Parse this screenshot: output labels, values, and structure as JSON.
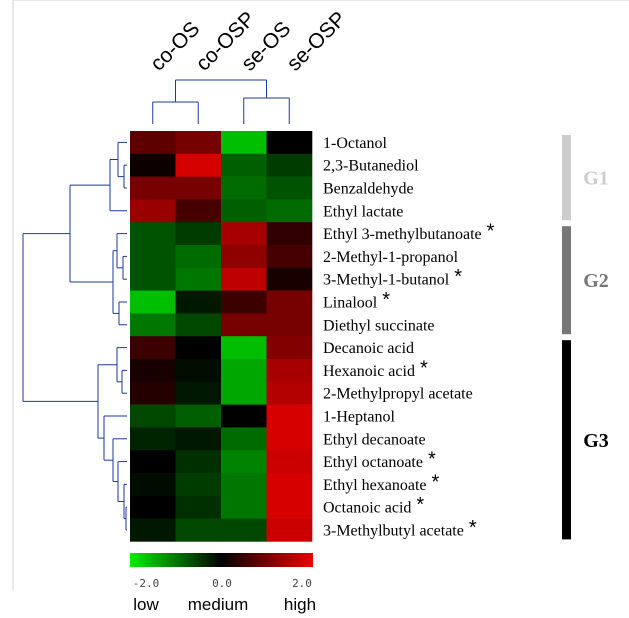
{
  "chart_data": {
    "type": "heatmap",
    "columns": [
      "co-OS",
      "co-OSP",
      "se-OS",
      "se-OSP"
    ],
    "rows": [
      {
        "name": "1-Octanol",
        "star": false,
        "values": [
          0.8,
          1.0,
          -1.6,
          0.0
        ]
      },
      {
        "name": "2,3-Butanediol",
        "star": false,
        "values": [
          0.1,
          1.8,
          -0.8,
          -0.5
        ]
      },
      {
        "name": "Benzaldehyde",
        "star": false,
        "values": [
          1.0,
          1.0,
          -0.9,
          -0.7
        ]
      },
      {
        "name": "Ethyl lactate",
        "star": false,
        "values": [
          1.3,
          0.6,
          -0.8,
          -0.9
        ]
      },
      {
        "name": "Ethyl 3-methylbutanoate",
        "star": true,
        "values": [
          -0.7,
          -0.5,
          1.4,
          0.4
        ]
      },
      {
        "name": "2-Methyl-1-propanol",
        "star": false,
        "values": [
          -0.7,
          -0.9,
          1.2,
          0.6
        ]
      },
      {
        "name": "3-Methyl-1-butanol",
        "star": true,
        "values": [
          -0.7,
          -1.0,
          1.6,
          0.2
        ]
      },
      {
        "name": "Linalool",
        "star": true,
        "values": [
          -1.6,
          -0.2,
          0.5,
          1.0
        ]
      },
      {
        "name": "Diethyl succinate",
        "star": false,
        "values": [
          -1.0,
          -0.6,
          1.0,
          1.0
        ]
      },
      {
        "name": "Decanoic acid",
        "star": false,
        "values": [
          0.5,
          0.0,
          -1.6,
          1.1
        ]
      },
      {
        "name": "Hexanoic acid",
        "star": true,
        "values": [
          0.2,
          -0.1,
          -1.4,
          1.4
        ]
      },
      {
        "name": "2-Methylpropyl acetate",
        "star": false,
        "values": [
          0.3,
          -0.2,
          -1.4,
          1.5
        ]
      },
      {
        "name": "1-Heptanol",
        "star": false,
        "values": [
          -0.6,
          -0.8,
          0.0,
          1.8
        ]
      },
      {
        "name": "Ethyl decanoate",
        "star": false,
        "values": [
          -0.3,
          -0.2,
          -0.9,
          1.8
        ]
      },
      {
        "name": "Ethyl octanoate",
        "star": true,
        "values": [
          0.0,
          -0.4,
          -1.1,
          1.7
        ]
      },
      {
        "name": "Ethyl hexanoate",
        "star": true,
        "values": [
          -0.1,
          -0.5,
          -1.0,
          1.8
        ]
      },
      {
        "name": "Octanoic acid",
        "star": true,
        "values": [
          0.0,
          -0.4,
          -1.0,
          1.8
        ]
      },
      {
        "name": "3-Methylbutyl acetate",
        "star": true,
        "values": [
          -0.2,
          -0.6,
          -0.6,
          1.7
        ]
      }
    ],
    "color_scale": {
      "min": -2.0,
      "mid": 0.0,
      "max": 2.0,
      "low_color": "#00ee00",
      "mid_color": "#000000",
      "high_color": "#ee0000"
    },
    "legend_ticks": [
      "-2.0",
      "0.0",
      "2.0"
    ],
    "legend_words": [
      "low",
      "medium",
      "high"
    ],
    "groups": [
      {
        "label": "G1",
        "color": "#cccccc",
        "first_row": 0,
        "last_row": 3
      },
      {
        "label": "G2",
        "color": "#777777",
        "first_row": 4,
        "last_row": 8
      },
      {
        "label": "G3",
        "color": "#000000",
        "first_row": 9,
        "last_row": 17
      }
    ],
    "star_symbol": "*"
  }
}
